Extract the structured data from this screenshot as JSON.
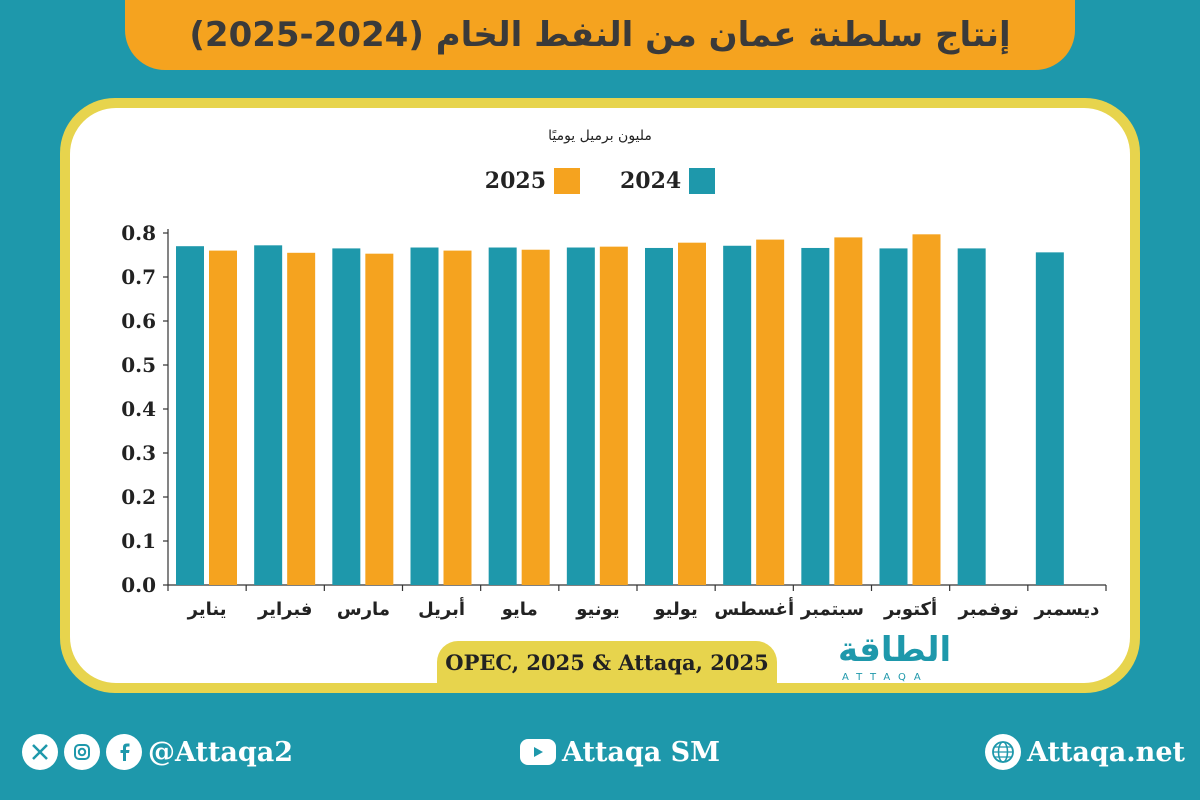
{
  "title": "إنتاج سلطنة عمان من النفط الخام (2024-2025)",
  "unit_label": "مليون برميل يوميًا",
  "source": "OPEC, 2025 & Attaqa, 2025",
  "logo": {
    "text": "الطاقة",
    "sub": "ATTAQA"
  },
  "footer": {
    "handle": "@Attaqa2",
    "youtube": "Attaqa SM",
    "website": "Attaqa.net",
    "x_icon": "x-icon",
    "instagram_icon": "instagram-icon",
    "facebook_icon": "facebook-icon",
    "youtube_icon": "youtube-icon",
    "globe_icon": "globe-icon"
  },
  "colors": {
    "background": "#1e98ab",
    "series_2024": "#1e98ab",
    "series_2025": "#f5a31f",
    "banner": "#f5a31f",
    "frame": "#e7d44d"
  },
  "chart_data": {
    "type": "bar",
    "title": "إنتاج سلطنة عمان من النفط الخام (2024-2025)",
    "ylabel": "مليون برميل يوميًا",
    "xlabel": "",
    "ylim": [
      0,
      0.8
    ],
    "yticks": [
      "0.0",
      "0.1",
      "0.2",
      "0.3",
      "0.4",
      "0.5",
      "0.6",
      "0.7",
      "0.8"
    ],
    "legend_position": "top-center",
    "categories": [
      "يناير",
      "فبراير",
      "مارس",
      "أبريل",
      "مايو",
      "يونيو",
      "يوليو",
      "أغسطس",
      "سبتمبر",
      "أكتوبر",
      "نوفمبر",
      "ديسمبر"
    ],
    "series": [
      {
        "name": "2024",
        "color": "#1e98ab",
        "values": [
          0.77,
          0.772,
          0.765,
          0.767,
          0.767,
          0.767,
          0.766,
          0.771,
          0.766,
          0.765,
          0.765,
          0.756
        ]
      },
      {
        "name": "2025",
        "color": "#f5a31f",
        "values": [
          0.76,
          0.755,
          0.753,
          0.76,
          0.762,
          0.769,
          0.778,
          0.785,
          0.79,
          0.797,
          null,
          null
        ]
      }
    ]
  }
}
